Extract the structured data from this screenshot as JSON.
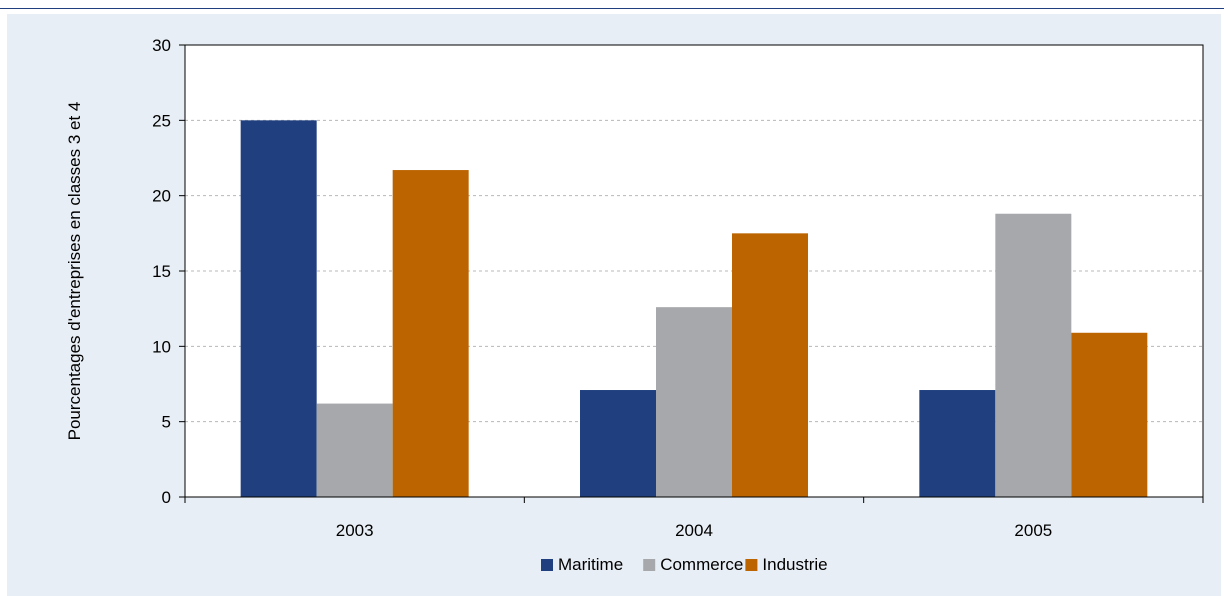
{
  "chart_data": {
    "type": "bar",
    "categories": [
      "2003",
      "2004",
      "2005"
    ],
    "series": [
      {
        "name": "Maritime",
        "values": [
          25.0,
          7.1,
          7.1
        ],
        "color": "#1F3F7E"
      },
      {
        "name": "Commerce",
        "values": [
          6.2,
          12.6,
          18.8
        ],
        "color": "#A6A8AB"
      },
      {
        "name": "Industrie",
        "values": [
          21.7,
          17.5,
          10.9
        ],
        "color": "#BB6400"
      }
    ],
    "title": "",
    "xlabel": "",
    "ylabel": "Pourcentages d'entreprises en classes 3 et 4",
    "ylim": [
      0,
      30
    ],
    "yticks": [
      0,
      5,
      10,
      15,
      20,
      25,
      30
    ],
    "grid": true,
    "legend_position": "bottom"
  },
  "colors": {
    "background": "#E8EEF5",
    "plot_area": "#FFFFFF",
    "accent_line": "#1F3F7E"
  }
}
